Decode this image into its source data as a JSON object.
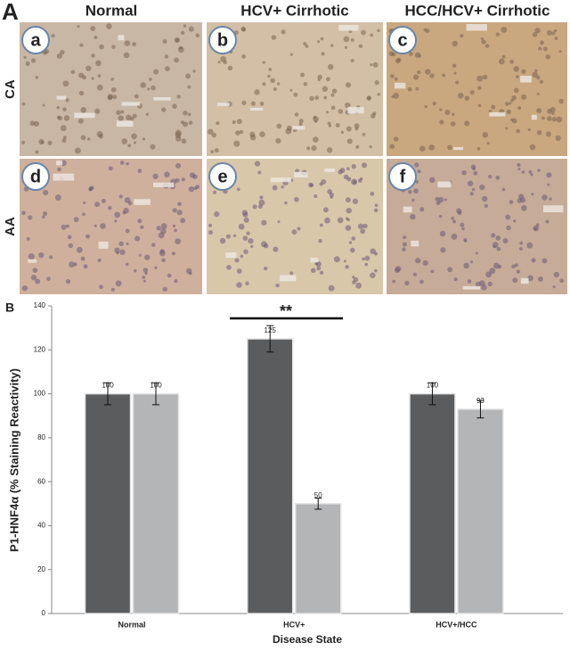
{
  "panel_a": {
    "label": "A",
    "columns": [
      "Normal",
      "HCV+ Cirrhotic",
      "HCC/HCV+ Cirrhotic"
    ],
    "rows": [
      "CA",
      "AA"
    ],
    "panels": [
      "a",
      "b",
      "c",
      "d",
      "e",
      "f"
    ]
  },
  "chart_data": {
    "type": "bar",
    "panel_label": "B",
    "y_label": "P1-HNF4α (% Staining Reactivity)",
    "x_label": "Disease State",
    "categories": [
      "Normal",
      "HCV+",
      "HCV+/HCC"
    ],
    "series": [
      {
        "color": "#5a5c5e",
        "values": [
          100,
          125,
          100
        ],
        "errors": [
          5,
          6,
          5
        ]
      },
      {
        "color": "#b4b5b7",
        "values": [
          100,
          50,
          93
        ],
        "errors": [
          5,
          2.5,
          4
        ]
      }
    ],
    "ylim": [
      0,
      140
    ],
    "yticks": [
      0,
      20,
      40,
      60,
      80,
      100,
      120,
      140
    ],
    "annotation": "**"
  }
}
